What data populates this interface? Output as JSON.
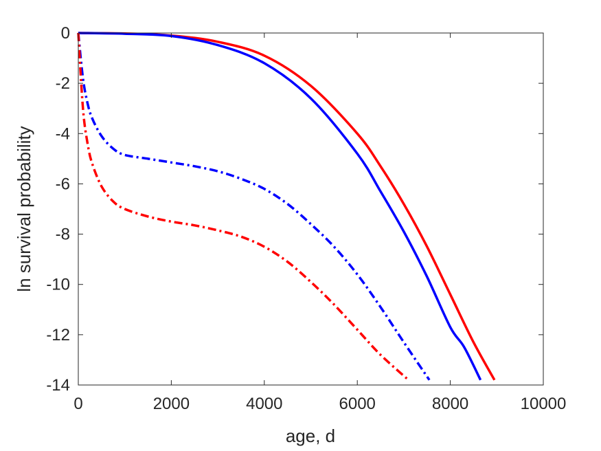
{
  "chart_data": {
    "type": "line",
    "title": "",
    "xlabel": "age, d",
    "ylabel": "ln survival probability",
    "xlim": [
      0,
      10000
    ],
    "ylim": [
      -14,
      0
    ],
    "xticks": [
      0,
      2000,
      4000,
      6000,
      8000,
      10000
    ],
    "yticks": [
      0,
      -2,
      -4,
      -6,
      -8,
      -10,
      -12,
      -14
    ],
    "xtick_labels": [
      "0",
      "2000",
      "4000",
      "6000",
      "8000",
      "10000"
    ],
    "ytick_labels": [
      "0",
      "-2",
      "-4",
      "-6",
      "-8",
      "-10",
      "-12",
      "-14"
    ],
    "grid": false,
    "legend": "none",
    "series": [
      {
        "color": "#ff0000",
        "style": "solid",
        "x": [
          0,
          1000,
          2000,
          3000,
          4000,
          5000,
          6000,
          6500,
          7000,
          7500,
          8000,
          8500,
          8950
        ],
        "y": [
          0,
          -0.02,
          -0.1,
          -0.35,
          -0.9,
          -2.1,
          -4.0,
          -5.3,
          -6.8,
          -8.5,
          -10.4,
          -12.3,
          -13.8
        ]
      },
      {
        "color": "#0000ff",
        "style": "solid",
        "x": [
          0,
          1000,
          2000,
          3000,
          4000,
          5000,
          6000,
          6500,
          7000,
          7500,
          8000,
          8300,
          8650
        ],
        "y": [
          0,
          -0.03,
          -0.12,
          -0.48,
          -1.2,
          -2.6,
          -4.8,
          -6.3,
          -7.9,
          -9.7,
          -11.7,
          -12.5,
          -13.8
        ]
      },
      {
        "color": "#0000ff",
        "style": "dashdot",
        "x": [
          0,
          100,
          200,
          300,
          500,
          750,
          1000,
          1500,
          2000,
          2500,
          3000,
          3500,
          4000,
          4500,
          5000,
          5500,
          6000,
          6500,
          7000,
          7550
        ],
        "y": [
          0,
          -1.8,
          -2.8,
          -3.4,
          -4.1,
          -4.6,
          -4.85,
          -5.0,
          -5.15,
          -5.3,
          -5.5,
          -5.8,
          -6.2,
          -6.8,
          -7.6,
          -8.5,
          -9.6,
          -10.9,
          -12.3,
          -13.8
        ]
      },
      {
        "color": "#ff0000",
        "style": "dashdot",
        "x": [
          0,
          100,
          200,
          300,
          500,
          750,
          1000,
          1500,
          2000,
          2500,
          3000,
          3500,
          4000,
          4500,
          5000,
          5500,
          6000,
          6500,
          7100
        ],
        "y": [
          0,
          -3.0,
          -4.4,
          -5.2,
          -6.1,
          -6.7,
          -7.0,
          -7.3,
          -7.5,
          -7.65,
          -7.85,
          -8.1,
          -8.5,
          -9.1,
          -9.9,
          -10.8,
          -11.8,
          -12.8,
          -13.8
        ]
      }
    ]
  }
}
